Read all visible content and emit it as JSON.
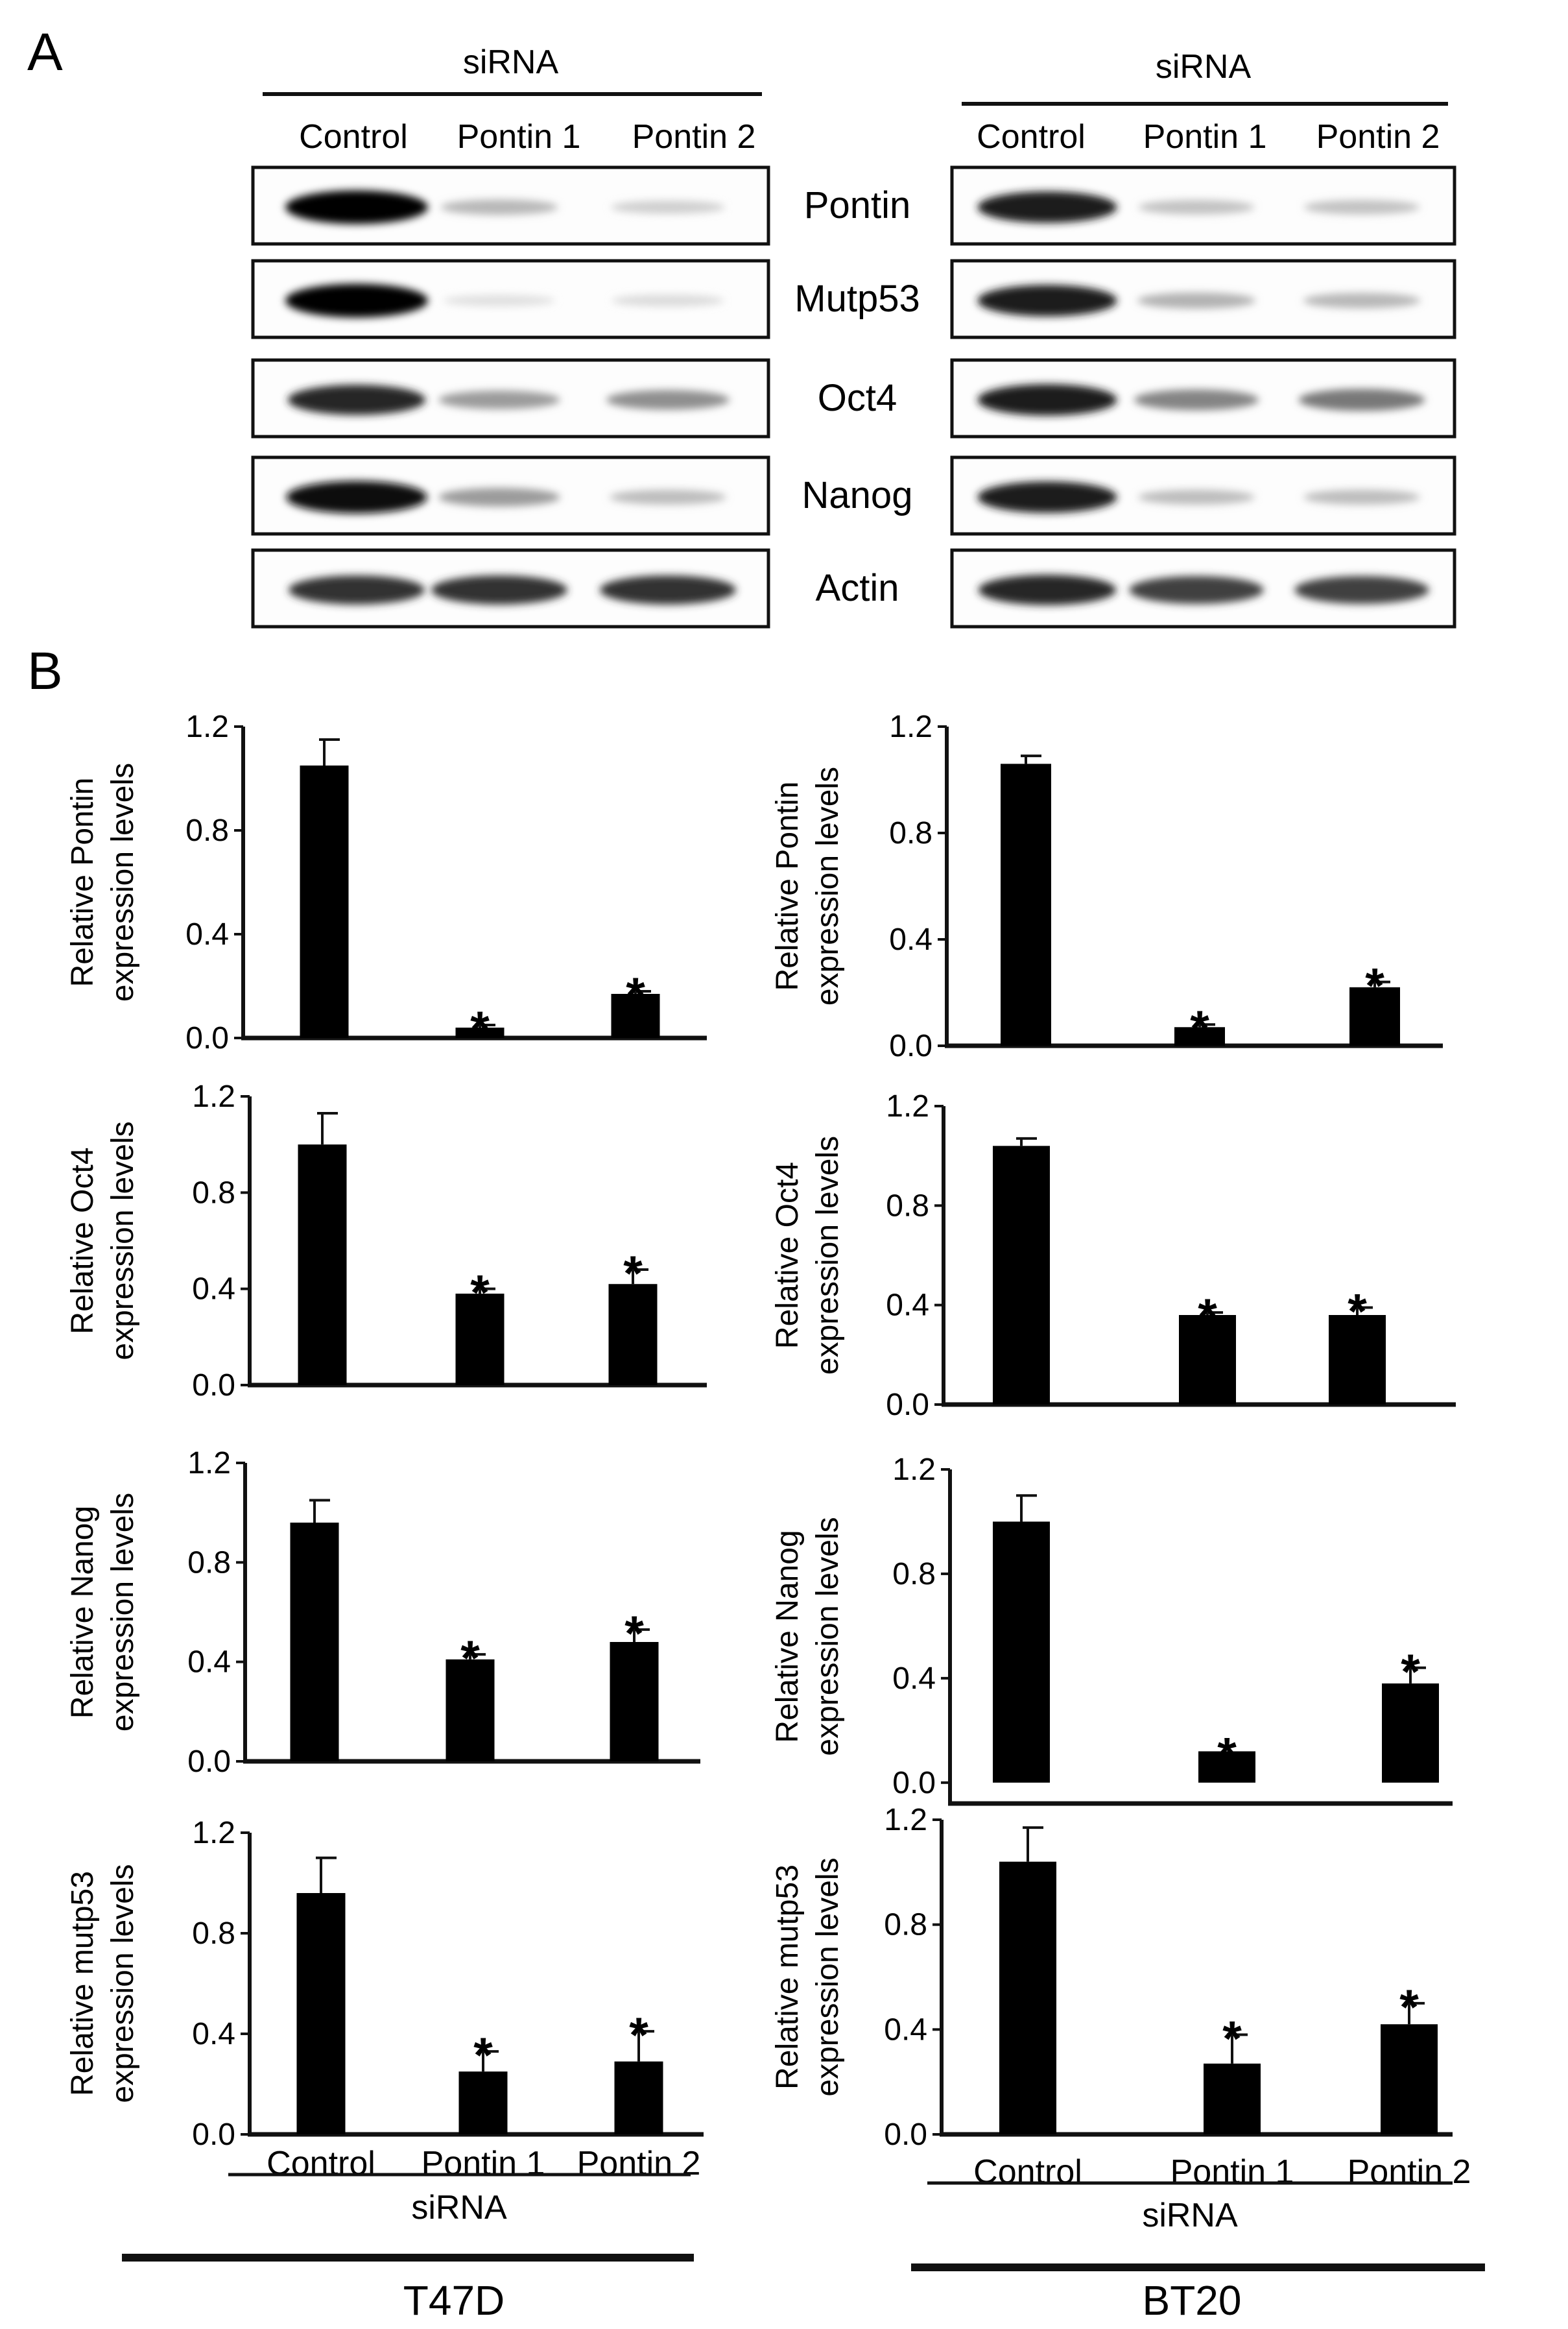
{
  "panels": {
    "a": "A",
    "b": "B"
  },
  "blots": {
    "header": "siRNA",
    "columns": [
      "Control",
      "Pontin 1",
      "Pontin 2"
    ],
    "proteins": [
      "Pontin",
      "Mutp53",
      "Oct4",
      "Nanog",
      "Actin"
    ],
    "intensity": {
      "T47D": {
        "Pontin": [
          1.0,
          0.22,
          0.12
        ],
        "Mutp53": [
          1.0,
          0.05,
          0.07
        ],
        "Oct4": [
          0.85,
          0.35,
          0.4
        ],
        "Nanog": [
          0.95,
          0.35,
          0.2
        ],
        "Actin": [
          0.8,
          0.8,
          0.8
        ]
      },
      "BT20": {
        "Pontin": [
          0.9,
          0.18,
          0.18
        ],
        "Mutp53": [
          0.9,
          0.25,
          0.22
        ],
        "Oct4": [
          0.9,
          0.45,
          0.5
        ],
        "Nanog": [
          0.9,
          0.2,
          0.2
        ],
        "Actin": [
          0.85,
          0.75,
          0.75
        ]
      }
    }
  },
  "chart_data": [
    {
      "type": "bar",
      "cell_line": "T47D",
      "ylabel_line1": "Relative Pontin",
      "ylabel_line2": "expression levels",
      "categories": [
        "Control",
        "Pontin 1",
        "Pontin 2"
      ],
      "values": [
        1.05,
        0.04,
        0.17
      ],
      "errors": [
        0.1,
        0.01,
        0.01
      ],
      "significant": [
        false,
        true,
        true
      ],
      "ylim": [
        0,
        1.2
      ],
      "yticks": [
        "0.0",
        "0.4",
        "0.8",
        "1.2"
      ]
    },
    {
      "type": "bar",
      "cell_line": "BT20",
      "ylabel_line1": "Relative Pontin",
      "ylabel_line2": "expression levels",
      "categories": [
        "Control",
        "Pontin 1",
        "Pontin 2"
      ],
      "values": [
        1.06,
        0.07,
        0.22
      ],
      "errors": [
        0.03,
        0.01,
        0.02
      ],
      "significant": [
        false,
        true,
        true
      ],
      "ylim": [
        0,
        1.2
      ],
      "yticks": [
        "0.0",
        "0.4",
        "0.8",
        "1.2"
      ]
    },
    {
      "type": "bar",
      "cell_line": "T47D",
      "ylabel_line1": "Relative Oct4",
      "ylabel_line2": "expression levels",
      "categories": [
        "Control",
        "Pontin 1",
        "Pontin 2"
      ],
      "values": [
        1.0,
        0.38,
        0.42
      ],
      "errors": [
        0.13,
        0.02,
        0.06
      ],
      "significant": [
        false,
        true,
        true
      ],
      "ylim": [
        0,
        1.2
      ],
      "yticks": [
        "0.0",
        "0.4",
        "0.8",
        "1.2"
      ]
    },
    {
      "type": "bar",
      "cell_line": "BT20",
      "ylabel_line1": "Relative Oct4",
      "ylabel_line2": "expression levels",
      "categories": [
        "Control",
        "Pontin 1",
        "Pontin 2"
      ],
      "values": [
        1.04,
        0.36,
        0.36
      ],
      "errors": [
        0.03,
        0.01,
        0.03
      ],
      "significant": [
        false,
        true,
        true
      ],
      "ylim": [
        0,
        1.2
      ],
      "yticks": [
        "0.0",
        "0.4",
        "0.8",
        "1.2"
      ]
    },
    {
      "type": "bar",
      "cell_line": "T47D",
      "ylabel_line1": "Relative Nanog",
      "ylabel_line2": "expression levels",
      "categories": [
        "Control",
        "Pontin 1",
        "Pontin 2"
      ],
      "values": [
        0.96,
        0.41,
        0.48
      ],
      "errors": [
        0.09,
        0.02,
        0.05
      ],
      "significant": [
        false,
        true,
        true
      ],
      "ylim": [
        0,
        1.2
      ],
      "yticks": [
        "0.0",
        "0.4",
        "0.8",
        "1.2"
      ]
    },
    {
      "type": "bar",
      "cell_line": "BT20",
      "ylabel_line1": "Relative Nanog",
      "ylabel_line2": "expression levels",
      "categories": [
        "Control",
        "Pontin 1",
        "Pontin 2"
      ],
      "values": [
        1.0,
        0.12,
        0.38
      ],
      "errors": [
        0.1,
        0.0,
        0.06
      ],
      "significant": [
        false,
        true,
        true
      ],
      "ylim": [
        -0.08,
        1.2
      ],
      "yticks": [
        "0.0",
        "0.4",
        "0.8",
        "1.2"
      ]
    },
    {
      "type": "bar",
      "cell_line": "T47D",
      "ylabel_line1": "Relative mutp53",
      "ylabel_line2": "expression levels",
      "categories": [
        "Control",
        "Pontin 1",
        "Pontin 2"
      ],
      "values": [
        0.96,
        0.25,
        0.29
      ],
      "errors": [
        0.14,
        0.08,
        0.12
      ],
      "significant": [
        false,
        true,
        true
      ],
      "ylim": [
        0,
        1.2
      ],
      "yticks": [
        "0.0",
        "0.4",
        "0.8",
        "1.2"
      ]
    },
    {
      "type": "bar",
      "cell_line": "BT20",
      "ylabel_line1": "Relative mutp53",
      "ylabel_line2": "expression levels",
      "categories": [
        "Control",
        "Pontin 1",
        "Pontin 2"
      ],
      "values": [
        1.04,
        0.27,
        0.42
      ],
      "errors": [
        0.13,
        0.11,
        0.08
      ],
      "significant": [
        false,
        true,
        true
      ],
      "ylim": [
        0,
        1.2
      ],
      "yticks": [
        "0.0",
        "0.4",
        "0.8",
        "1.2"
      ]
    }
  ],
  "bottom": {
    "group_label": "siRNA",
    "cells": [
      "T47D",
      "BT20"
    ]
  },
  "colors": {
    "bar": "#000000",
    "ink": "#111111"
  }
}
